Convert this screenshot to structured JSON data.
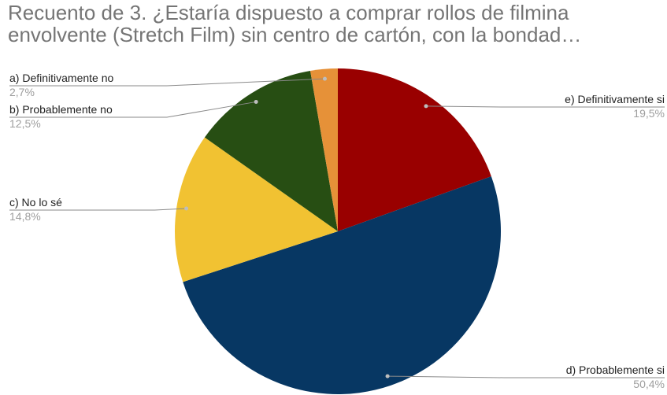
{
  "chart_data": {
    "type": "pie",
    "title_lines": [
      "Recuento de 3. ¿Estaría dispuesto a comprar rollos de filmina",
      "envolvente (Stretch Film) sin centro de cartón, con la bondad…"
    ],
    "slices": [
      {
        "label": "e) Definitivamente si",
        "value": 19.5,
        "percent_text": "19,5%",
        "color": "#990000"
      },
      {
        "label": "d) Probablemente si",
        "value": 50.4,
        "percent_text": "50,4%",
        "color": "#073763"
      },
      {
        "label": "c) No lo sé",
        "value": 14.8,
        "percent_text": "14,8%",
        "color": "#f1c232"
      },
      {
        "label": "b) Probablemente no",
        "value": 12.5,
        "percent_text": "12,5%",
        "color": "#274e13"
      },
      {
        "label": "a) Definitivamente no",
        "value": 2.7,
        "percent_text": "2,7%",
        "color": "#e69138"
      }
    ],
    "start_angle": "top",
    "direction": "clockwise"
  }
}
